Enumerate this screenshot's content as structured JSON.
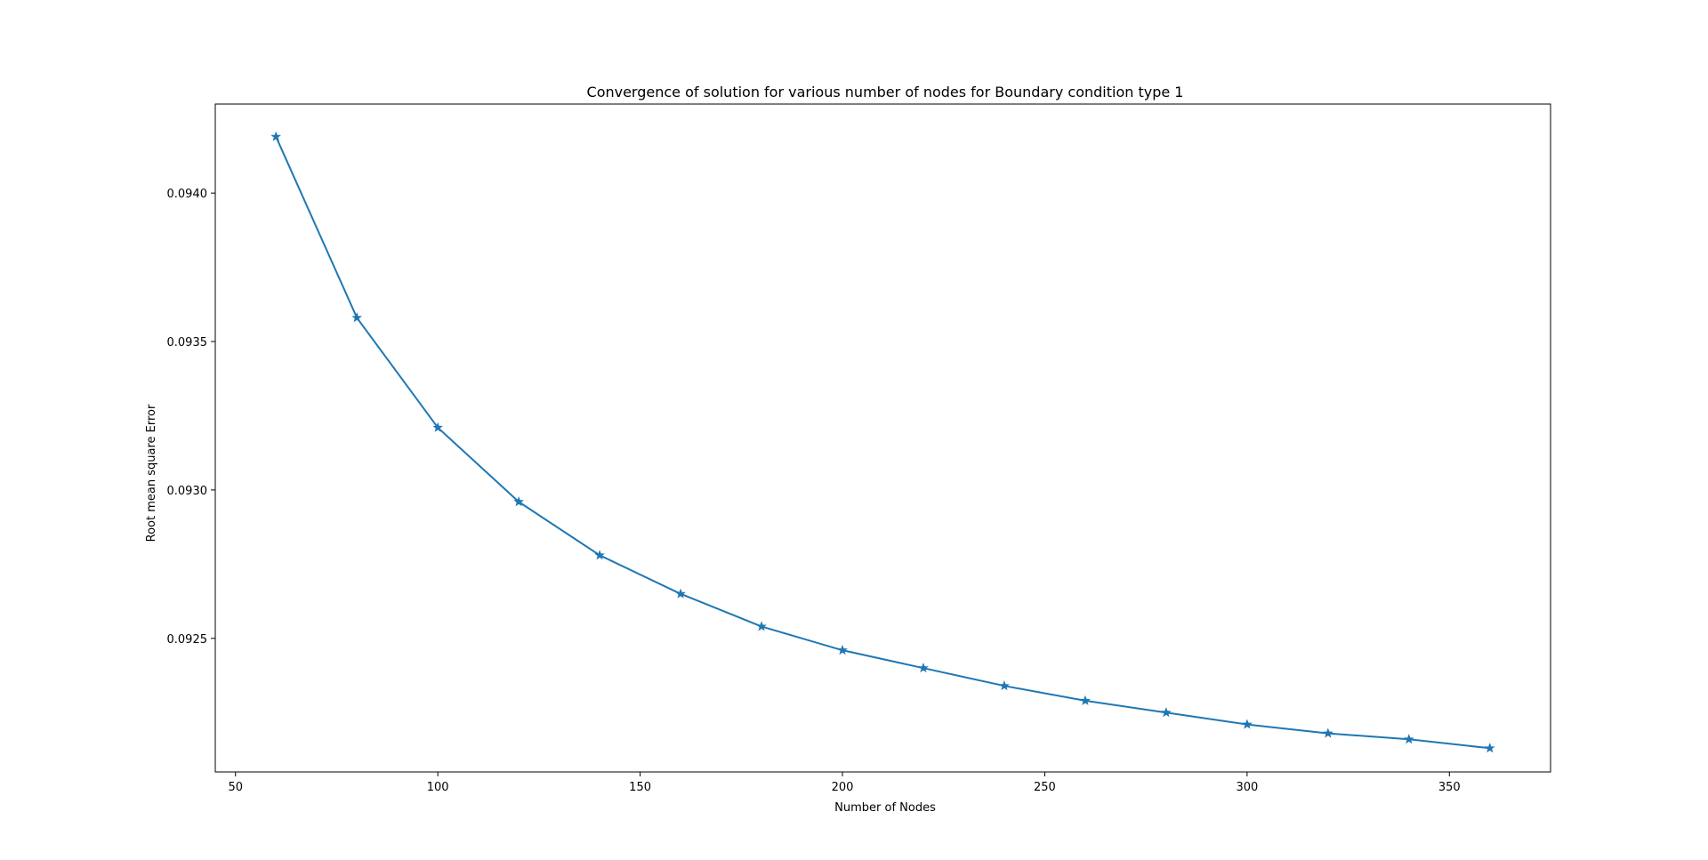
{
  "chart_data": {
    "type": "line",
    "title": "Convergence of solution for various number of nodes for Boundary condition type 1",
    "xlabel": "Number of Nodes",
    "ylabel": "Root mean square Error",
    "xlim": [
      45,
      375
    ],
    "ylim": [
      0.09205,
      0.0943
    ],
    "xticks": [
      50,
      100,
      150,
      200,
      250,
      300,
      350
    ],
    "yticks": [
      0.0925,
      0.093,
      0.0935,
      0.094
    ],
    "ytick_labels": [
      "0.0925",
      "0.0930",
      "0.0935",
      "0.0940"
    ],
    "grid": false,
    "series": [
      {
        "color": "#1f77b4",
        "marker": "star",
        "x": [
          60,
          80,
          100,
          120,
          140,
          160,
          180,
          200,
          220,
          240,
          260,
          280,
          300,
          320,
          340,
          360
        ],
        "y": [
          0.09419,
          0.09358,
          0.09321,
          0.09296,
          0.09278,
          0.09265,
          0.09254,
          0.09246,
          0.0924,
          0.09234,
          0.09229,
          0.09225,
          0.09221,
          0.09218,
          0.09216,
          0.09213
        ]
      }
    ]
  }
}
